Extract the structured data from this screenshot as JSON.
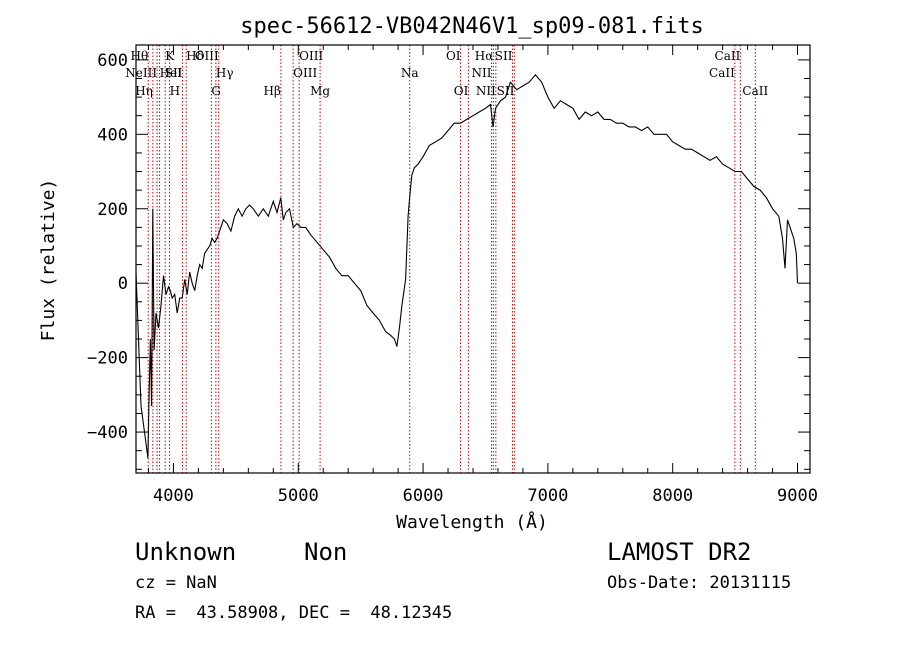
{
  "chart_data": {
    "type": "line",
    "title": "spec-56612-VB042N46V1_sp09-081.fits",
    "xlabel": "Wavelength (Å)",
    "ylabel": "Flux (relative)",
    "xlim": [
      3700,
      9100
    ],
    "ylim": [
      -510,
      640
    ],
    "xticks": [
      4000,
      5000,
      6000,
      7000,
      8000,
      9000
    ],
    "yticks": [
      -400,
      -200,
      0,
      200,
      400,
      600
    ],
    "xtick_labels": [
      "4000",
      "5000",
      "6000",
      "7000",
      "8000",
      "9000"
    ],
    "ytick_labels": [
      "−400",
      "−200",
      "0",
      "200",
      "400",
      "600"
    ],
    "grid": false,
    "line_color": "#000000",
    "marker_color": "#cc0000",
    "spectrum": [
      [
        3700,
        30
      ],
      [
        3720,
        -150
      ],
      [
        3740,
        -330
      ],
      [
        3760,
        -380
      ],
      [
        3780,
        -430
      ],
      [
        3795,
        -470
      ],
      [
        3805,
        -300
      ],
      [
        3815,
        -150
      ],
      [
        3825,
        -330
      ],
      [
        3835,
        200
      ],
      [
        3845,
        -180
      ],
      [
        3860,
        -80
      ],
      [
        3880,
        -120
      ],
      [
        3900,
        -60
      ],
      [
        3920,
        20
      ],
      [
        3940,
        -30
      ],
      [
        3960,
        -10
      ],
      [
        3975,
        -20
      ],
      [
        3990,
        -40
      ],
      [
        4010,
        -30
      ],
      [
        4030,
        -80
      ],
      [
        4050,
        -40
      ],
      [
        4070,
        -40
      ],
      [
        4090,
        10
      ],
      [
        4110,
        -30
      ],
      [
        4130,
        30
      ],
      [
        4150,
        0
      ],
      [
        4170,
        -20
      ],
      [
        4190,
        20
      ],
      [
        4210,
        50
      ],
      [
        4230,
        40
      ],
      [
        4250,
        80
      ],
      [
        4270,
        90
      ],
      [
        4290,
        100
      ],
      [
        4310,
        120
      ],
      [
        4330,
        110
      ],
      [
        4350,
        120
      ],
      [
        4370,
        140
      ],
      [
        4400,
        170
      ],
      [
        4430,
        160
      ],
      [
        4460,
        140
      ],
      [
        4490,
        180
      ],
      [
        4520,
        200
      ],
      [
        4550,
        180
      ],
      [
        4580,
        200
      ],
      [
        4610,
        210
      ],
      [
        4640,
        200
      ],
      [
        4680,
        180
      ],
      [
        4720,
        200
      ],
      [
        4760,
        180
      ],
      [
        4800,
        220
      ],
      [
        4830,
        190
      ],
      [
        4860,
        230
      ],
      [
        4880,
        170
      ],
      [
        4900,
        190
      ],
      [
        4930,
        200
      ],
      [
        4960,
        150
      ],
      [
        4990,
        160
      ],
      [
        5020,
        150
      ],
      [
        5060,
        150
      ],
      [
        5100,
        130
      ],
      [
        5150,
        110
      ],
      [
        5200,
        90
      ],
      [
        5250,
        70
      ],
      [
        5300,
        40
      ],
      [
        5350,
        20
      ],
      [
        5400,
        20
      ],
      [
        5450,
        0
      ],
      [
        5500,
        -20
      ],
      [
        5550,
        -60
      ],
      [
        5600,
        -80
      ],
      [
        5650,
        -100
      ],
      [
        5700,
        -130
      ],
      [
        5740,
        -140
      ],
      [
        5770,
        -150
      ],
      [
        5790,
        -170
      ],
      [
        5810,
        -120
      ],
      [
        5830,
        -60
      ],
      [
        5860,
        10
      ],
      [
        5880,
        180
      ],
      [
        5890,
        220
      ],
      [
        5910,
        290
      ],
      [
        5930,
        310
      ],
      [
        5960,
        320
      ],
      [
        6000,
        340
      ],
      [
        6050,
        370
      ],
      [
        6100,
        380
      ],
      [
        6150,
        390
      ],
      [
        6200,
        410
      ],
      [
        6250,
        430
      ],
      [
        6300,
        430
      ],
      [
        6350,
        440
      ],
      [
        6400,
        450
      ],
      [
        6450,
        460
      ],
      [
        6500,
        470
      ],
      [
        6540,
        480
      ],
      [
        6560,
        420
      ],
      [
        6580,
        470
      ],
      [
        6620,
        490
      ],
      [
        6660,
        500
      ],
      [
        6700,
        540
      ],
      [
        6750,
        520
      ],
      [
        6800,
        530
      ],
      [
        6850,
        540
      ],
      [
        6900,
        560
      ],
      [
        6950,
        540
      ],
      [
        7000,
        500
      ],
      [
        7050,
        470
      ],
      [
        7100,
        490
      ],
      [
        7150,
        480
      ],
      [
        7200,
        470
      ],
      [
        7250,
        440
      ],
      [
        7300,
        460
      ],
      [
        7350,
        450
      ],
      [
        7400,
        460
      ],
      [
        7450,
        440
      ],
      [
        7500,
        440
      ],
      [
        7550,
        430
      ],
      [
        7600,
        430
      ],
      [
        7650,
        420
      ],
      [
        7700,
        420
      ],
      [
        7750,
        410
      ],
      [
        7800,
        420
      ],
      [
        7850,
        400
      ],
      [
        7900,
        400
      ],
      [
        7950,
        400
      ],
      [
        8000,
        380
      ],
      [
        8050,
        370
      ],
      [
        8100,
        360
      ],
      [
        8150,
        360
      ],
      [
        8200,
        350
      ],
      [
        8250,
        340
      ],
      [
        8300,
        330
      ],
      [
        8350,
        340
      ],
      [
        8400,
        320
      ],
      [
        8450,
        310
      ],
      [
        8500,
        300
      ],
      [
        8550,
        300
      ],
      [
        8600,
        280
      ],
      [
        8650,
        260
      ],
      [
        8700,
        250
      ],
      [
        8750,
        230
      ],
      [
        8800,
        200
      ],
      [
        8850,
        180
      ],
      [
        8880,
        120
      ],
      [
        8900,
        40
      ],
      [
        8920,
        170
      ],
      [
        8950,
        140
      ],
      [
        8970,
        120
      ],
      [
        8990,
        80
      ],
      [
        9000,
        0
      ]
    ],
    "markers": [
      {
        "wl": 3798,
        "label": "Hθ",
        "row": 1,
        "align": "end"
      },
      {
        "wl": 3835,
        "label": "Hη",
        "row": 3,
        "align": "end"
      },
      {
        "wl": 3869,
        "label": "NeIII",
        "row": 2,
        "align": "end"
      },
      {
        "wl": 3889,
        "label": "HeI",
        "row": 2,
        "align": "start"
      },
      {
        "wl": 3934,
        "label": "K",
        "row": 1,
        "align": "start"
      },
      {
        "wl": 3969,
        "label": "H",
        "row": 3,
        "align": "start"
      },
      {
        "wl": 4072,
        "label": "SII",
        "row": 2,
        "align": "end"
      },
      {
        "wl": 4102,
        "label": "Hδ",
        "row": 1,
        "align": "start"
      },
      {
        "wl": 4304,
        "label": "G",
        "row": 3,
        "align": "start"
      },
      {
        "wl": 4340,
        "label": "Hγ",
        "row": 2,
        "align": "start"
      },
      {
        "wl": 4363,
        "label": "OIII",
        "row": 1,
        "align": "end"
      },
      {
        "wl": 4861,
        "label": "Hβ",
        "row": 3,
        "align": "end"
      },
      {
        "wl": 4959,
        "label": "OIII",
        "row": 2,
        "align": "start"
      },
      {
        "wl": 5007,
        "label": "OIII",
        "row": 1,
        "align": "start"
      },
      {
        "wl": 5175,
        "label": "Mg",
        "row": 3,
        "align": "middle"
      },
      {
        "wl": 5893,
        "label": "Na",
        "row": 2,
        "align": "middle"
      },
      {
        "wl": 6300,
        "label": "OI",
        "row": 1,
        "align": "end"
      },
      {
        "wl": 6363,
        "label": "OI",
        "row": 3,
        "align": "end"
      },
      {
        "wl": 6548,
        "label": "NII",
        "row": 2,
        "align": "end"
      },
      {
        "wl": 6563,
        "label": "Hα",
        "row": 1,
        "align": "end"
      },
      {
        "wl": 6583,
        "label": "NII",
        "row": 3,
        "align": "end"
      },
      {
        "wl": 6716,
        "label": "SII",
        "row": 1,
        "align": "end"
      },
      {
        "wl": 6731,
        "label": "SII",
        "row": 3,
        "align": "end"
      },
      {
        "wl": 8498,
        "label": "CaII",
        "row": 2,
        "align": "end"
      },
      {
        "wl": 8542,
        "label": "CaII",
        "row": 1,
        "align": "end"
      },
      {
        "wl": 8662,
        "label": "CaII",
        "row": 3,
        "align": "middle"
      }
    ]
  },
  "footer": {
    "class_name": "Unknown",
    "subclass": "Non",
    "survey": "LAMOST DR2",
    "cz": "cz = NaN",
    "obs_date": "Obs-Date: 20131115",
    "radec": "RA =  43.58908, DEC =  48.12345"
  }
}
